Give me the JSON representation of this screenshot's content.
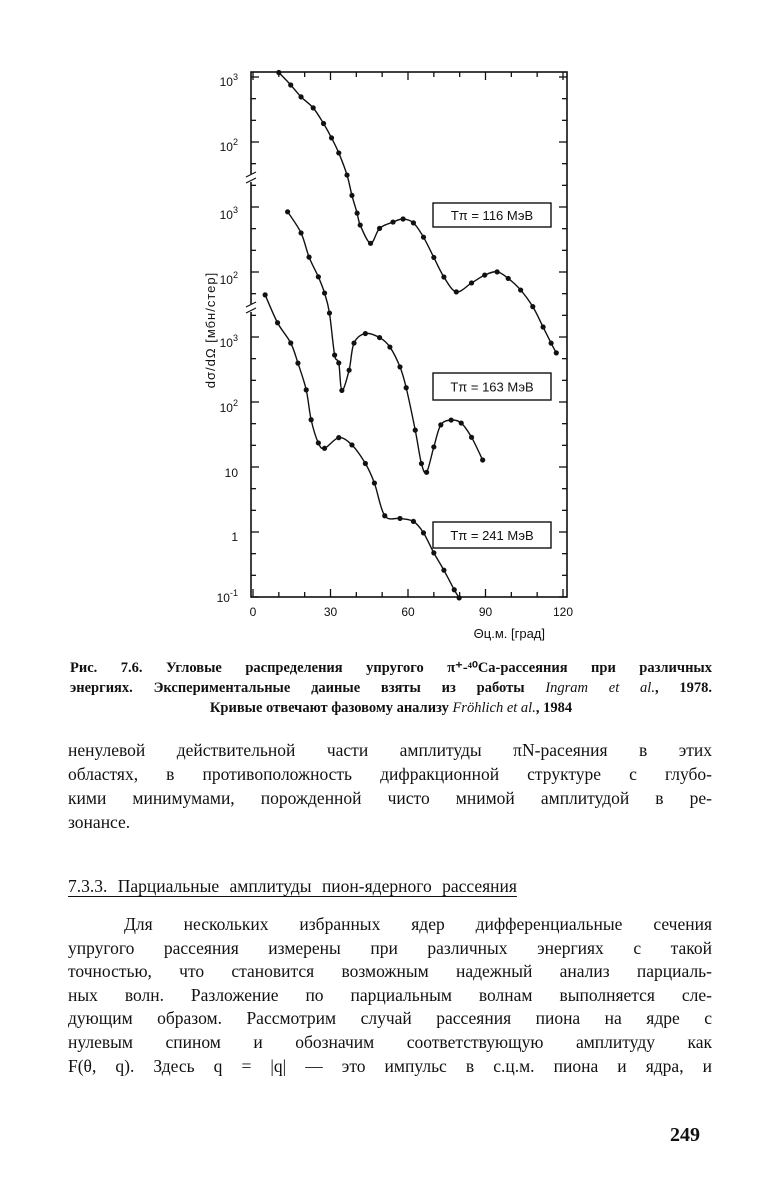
{
  "chart_data": {
    "type": "line",
    "xlabel": "Θц.м. [град]",
    "ylabel": "dσ/dΩ [мбн/стер]",
    "xlim": [
      0,
      120
    ],
    "x_ticks": [
      "0",
      "30",
      "60",
      "90",
      "120"
    ],
    "y_scale": "log",
    "y_axis_segments": [
      {
        "series": "Tπ = 116 МэВ",
        "tick_labels": [
          {
            "base": "10",
            "exp": "3"
          },
          {
            "base": "10",
            "exp": "2"
          }
        ]
      },
      {
        "series": "Tπ = 163 МэВ",
        "tick_labels": [
          {
            "base": "10",
            "exp": "3"
          },
          {
            "base": "10",
            "exp": "2"
          }
        ]
      },
      {
        "series": "Tπ = 241 МэВ",
        "tick_labels": [
          {
            "base": "10",
            "exp": "3"
          },
          {
            "base": "10",
            "exp": "2"
          },
          {
            "base": "10",
            "exp": ""
          },
          {
            "base": "1",
            "exp": ""
          },
          {
            "base": "10",
            "exp": "-1"
          }
        ]
      }
    ],
    "grid": false,
    "series": [
      {
        "name": "Tπ = 116 МэВ",
        "x": [
          10,
          14.6,
          18.6,
          23.3,
          27.3,
          30.4,
          33.2,
          36.4,
          38.3,
          40.3,
          41.5,
          45.5,
          49,
          54.2,
          58.1,
          62.1,
          66,
          70,
          73.9,
          78.7,
          84.6,
          89.7,
          94.5,
          98.8,
          103.6,
          108.3,
          112.3,
          115.4,
          117.4
        ],
        "y": [
          1400,
          900,
          590,
          400,
          230,
          138,
          81,
          37,
          18,
          9.6,
          6.3,
          3.3,
          5.6,
          7.0,
          7.8,
          6.8,
          4.1,
          2.0,
          1.0,
          0.59,
          0.81,
          1.07,
          1.2,
          0.95,
          0.63,
          0.35,
          0.17,
          0.096,
          0.068
        ]
      },
      {
        "name": "Tπ = 163 МэВ",
        "x": [
          13.4,
          18.6,
          21.7,
          25.3,
          27.7,
          29.6,
          31.6,
          33.2,
          34.4,
          37.2,
          39.1,
          43.5,
          49,
          53,
          56.9,
          59.3,
          62.8,
          65.2,
          67.2,
          70,
          72.7,
          76.7,
          80.6,
          84.6,
          88.9
        ],
        "y": [
          1120,
          530,
          225,
          112,
          63,
          31,
          7.0,
          5.3,
          2.0,
          4.1,
          10.7,
          15,
          13,
          9.3,
          4.6,
          2.2,
          0.49,
          0.15,
          0.11,
          0.27,
          0.59,
          0.7,
          0.63,
          0.38,
          0.17
        ]
      },
      {
        "name": "Tπ = 241 МэВ",
        "x": [
          4.7,
          9.5,
          14.6,
          17.4,
          20.6,
          22.5,
          25.3,
          27.7,
          33.2,
          38.3,
          43.5,
          47,
          51,
          56.9,
          62.1,
          66,
          70,
          73.9,
          77.9,
          79.8
        ],
        "y": [
          5500,
          2050,
          1000,
          490,
          190,
          66,
          29,
          24,
          35,
          27,
          14,
          7.0,
          2.2,
          2.0,
          1.8,
          1.2,
          0.59,
          0.32,
          0.16,
          0.12
        ]
      }
    ],
    "legend": [
      "Tπ = 116 МэВ",
      "Tπ = 163 МэВ",
      "Tπ = 241 МэВ"
    ]
  },
  "caption": {
    "line1": "Рис. 7.6. Угловые распределения упругого π⁺-⁴⁰Ca-рассеяния при различных",
    "line2a": "энергиях. Экспериментальные даиные взяты из работы ",
    "line2_ref": "Ingram et al.",
    "line2b": ", 1978.",
    "line3a": "Кривые отвечают фазовому анализу ",
    "line3_ref": "Fröhlich et al.",
    "line3b": ", 1984"
  },
  "paragraph1": [
    "ненулевой действительной части амплитуды πN-расеяния в этих",
    "областях, в противоположность дифракционной структуре с глубо-",
    "кими минимумами, порожденной чисто мнимой амплитудой в ре-",
    "зонансе."
  ],
  "section_heading": "7.3.3. Парциальные амплитуды пион-ядерного рассеяния",
  "paragraph2": [
    "Для нескольких избранных ядер дифференциальные сечения",
    "упругого рассеяния измерены при различных энергиях с такой",
    "точностью, что становится возможным надежный анализ парциаль-",
    "ных волн. Разложение по парциальным волнам выполняется сле-",
    "дующим образом. Рассмотрим случай рассеяния пиона на ядре с",
    "нулевым спином и обозначим соответствующую амплитуду как",
    "F(θ, q). Здесь q = |q| — это импульс в с.ц.м. пиона и ядра, и"
  ],
  "page_number": "249"
}
